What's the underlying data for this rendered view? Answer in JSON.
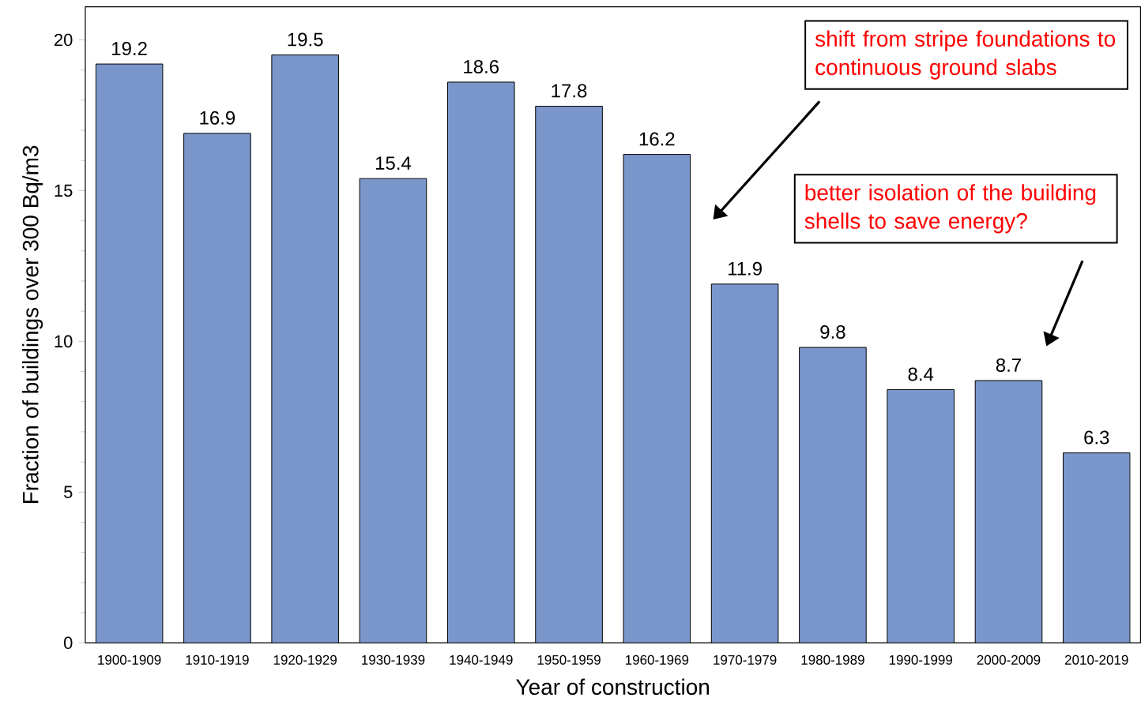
{
  "chart_data": {
    "type": "bar",
    "xlabel": "Year of construction",
    "ylabel": "Fraction of buildings over 300 Bq/m3",
    "categories": [
      "1900-1909",
      "1910-1919",
      "1920-1929",
      "1930-1939",
      "1940-1949",
      "1950-1959",
      "1960-1969",
      "1970-1979",
      "1980-1989",
      "1990-1999",
      "2000-2009",
      "2010-2019"
    ],
    "values": [
      19.2,
      16.9,
      19.5,
      15.4,
      18.6,
      17.8,
      16.2,
      11.9,
      9.8,
      8.4,
      8.7,
      6.3
    ],
    "color": "#7b96cb",
    "ylim": [
      0,
      21.1
    ],
    "yticks": [
      0,
      5,
      10,
      15,
      20
    ],
    "data_labels": true,
    "annotations": [
      "shift from stripe foundations to continuous ground slabs",
      "better isolation of the building shells to save energy?"
    ]
  }
}
